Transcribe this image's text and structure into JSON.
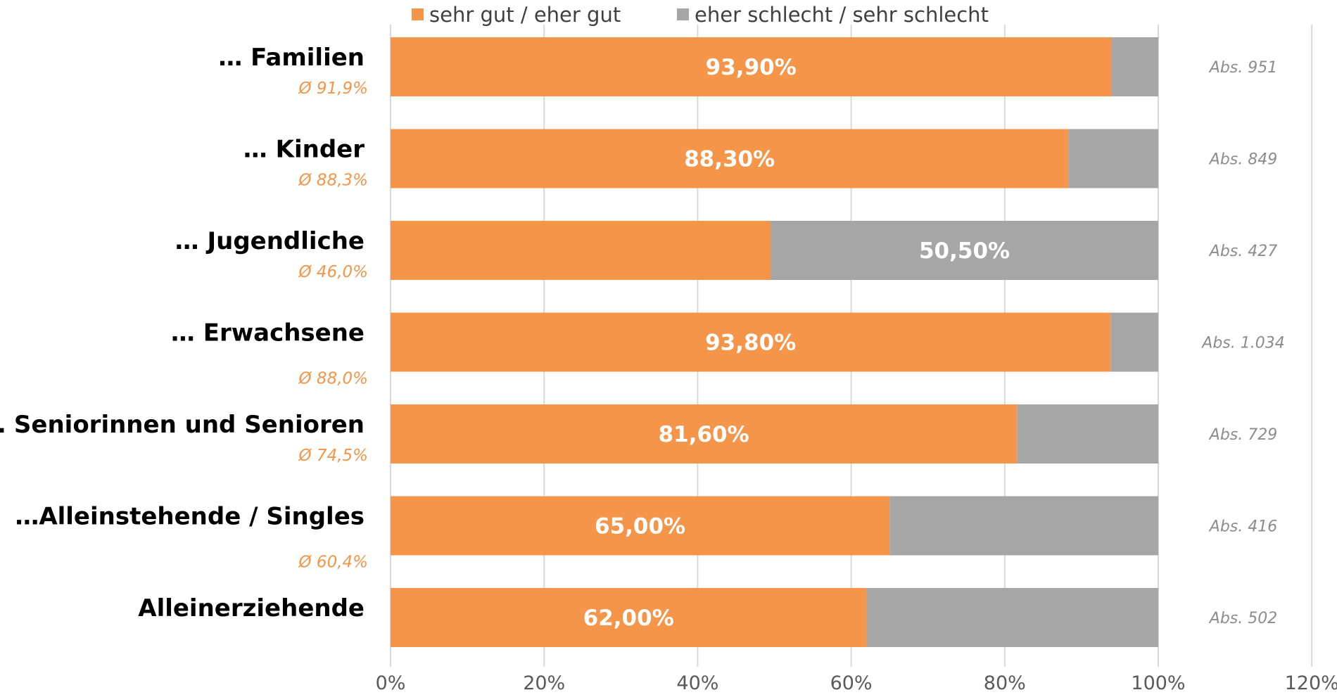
{
  "chart_data": {
    "type": "bar",
    "orientation": "horizontal",
    "stacked": true,
    "categories": [
      "… Familien",
      "… Kinder",
      "… Jugendliche",
      "… Erwachsene",
      "… Seniorinnen und Senioren",
      "…Alleinstehende / Singles",
      "Alleinerziehende"
    ],
    "averages": [
      "Ø 91,9%",
      "Ø 88,3%",
      "Ø 46,0%",
      "Ø 88,0%",
      "Ø 74,5%",
      "Ø 60,4%",
      ""
    ],
    "absolute": [
      "Abs. 951",
      "Abs. 849",
      "Abs. 427",
      "Abs. 1.034",
      "Abs. 729",
      "Abs. 416",
      "Abs. 502"
    ],
    "series": [
      {
        "name": "sehr gut / eher gut",
        "color": "#f4954a",
        "values": [
          93.9,
          88.3,
          49.5,
          93.8,
          81.6,
          65.0,
          62.0
        ],
        "labels": [
          "93,90%",
          "88,30%",
          "",
          "93,80%",
          "81,60%",
          "65,00%",
          "62,00%"
        ]
      },
      {
        "name": "eher schlecht / sehr schlecht",
        "color": "#a6a6a6",
        "values": [
          6.1,
          11.7,
          50.5,
          6.2,
          18.4,
          35.0,
          38.0
        ],
        "labels": [
          "",
          "",
          "50,50%",
          "",
          "",
          "",
          ""
        ]
      }
    ],
    "xlim": [
      0,
      120
    ],
    "xticks": [
      "0%",
      "20%",
      "40%",
      "60%",
      "80%",
      "100%",
      "120%"
    ],
    "grid": true,
    "legend_position": "top"
  }
}
